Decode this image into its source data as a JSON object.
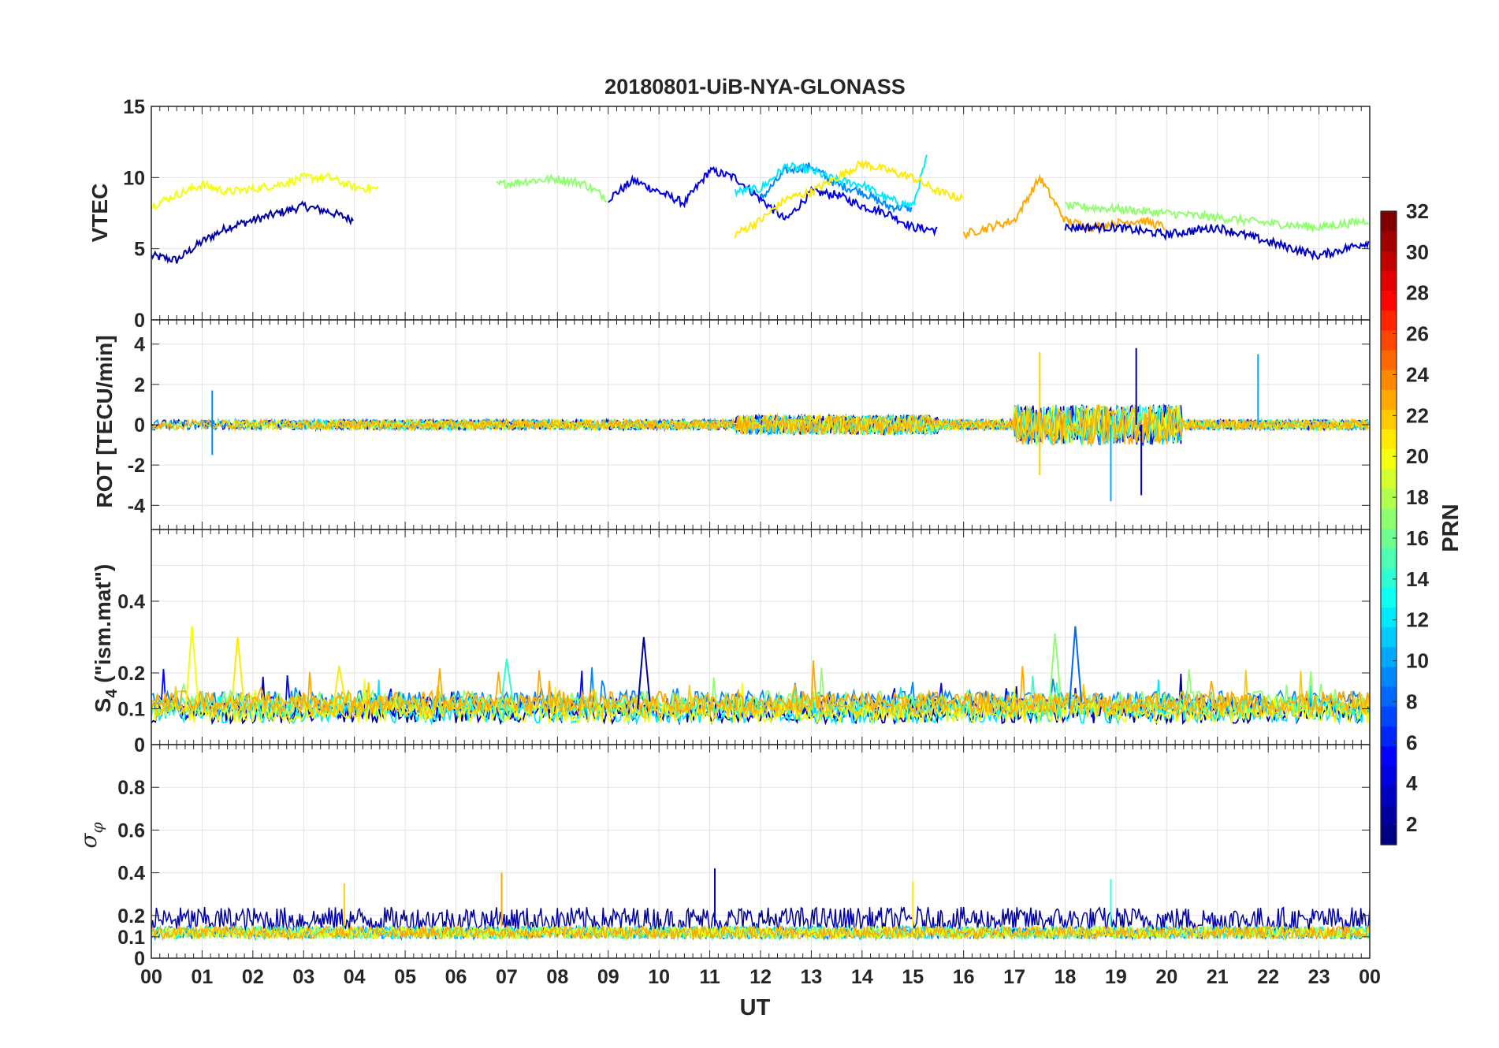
{
  "chart_data": [
    {
      "type": "line",
      "title": "20180801-UiB-NYA-GLONASS",
      "ylabel": "VTEC",
      "ylim": [
        0,
        15
      ],
      "yticks": [
        "0",
        "5",
        "10",
        "15"
      ],
      "grid": true,
      "x_range": [
        0,
        24
      ],
      "note_series": "Many satellite PRN traces colored by PRN (1-24 visible)",
      "series_approx": [
        {
          "prn": 2,
          "x": [
            0,
            0.5,
            1,
            1.5,
            2,
            2.5,
            3,
            3.5,
            4
          ],
          "y": [
            4.5,
            4.2,
            5.5,
            6.5,
            7.0,
            7.5,
            8.0,
            7.6,
            7.0
          ]
        },
        {
          "prn": 4,
          "x": [
            9,
            9.5,
            10,
            10.5,
            11,
            11.5,
            12,
            12.5,
            13,
            13.5,
            14,
            14.5,
            15,
            15.5
          ],
          "y": [
            8.5,
            9.8,
            9.0,
            8.2,
            10.5,
            10.0,
            8.5,
            7.0,
            9.0,
            8.8,
            8.0,
            7.5,
            6.5,
            6.3
          ]
        },
        {
          "prn": 9,
          "x": [
            12,
            12.5,
            13,
            13.5,
            14,
            14.5,
            15
          ],
          "y": [
            8.5,
            10.5,
            10.8,
            9.5,
            9.0,
            8.0,
            7.8
          ]
        },
        {
          "prn": 12,
          "x": [
            11.5,
            12,
            12.5,
            13,
            13.5,
            14,
            14.5,
            15,
            15.3
          ],
          "y": [
            9.0,
            9.2,
            10.8,
            10.5,
            9.8,
            9.5,
            8.5,
            8.0,
            11.7
          ]
        },
        {
          "prn": 17,
          "x": [
            6.8,
            7.5,
            8,
            8.5,
            9
          ],
          "y": [
            9.5,
            9.8,
            9.9,
            9.6,
            8.5
          ]
        },
        {
          "prn": 20,
          "x": [
            0,
            0.5,
            1,
            1.5,
            2,
            2.5,
            3,
            3.5,
            4,
            4.5
          ],
          "y": [
            8.0,
            8.8,
            9.5,
            9.0,
            9.2,
            9.5,
            10.0,
            10.0,
            9.3,
            9.2
          ]
        },
        {
          "prn": 21,
          "x": [
            11.5,
            12,
            12.5,
            13,
            13.5,
            14,
            14.5,
            15,
            15.5,
            16
          ],
          "y": [
            6.0,
            7.0,
            8.5,
            9.0,
            10.0,
            11.0,
            10.5,
            10.0,
            9.0,
            8.5
          ]
        },
        {
          "prn": 23,
          "x": [
            16,
            16.5,
            17,
            17.5,
            18,
            18.5,
            19,
            19.5,
            20
          ],
          "y": [
            6.0,
            6.5,
            7.0,
            10.0,
            7.0,
            6.5,
            6.8,
            7.0,
            6.5
          ]
        },
        {
          "prn": 17,
          "x": [
            18,
            19,
            20,
            21,
            22,
            23,
            24
          ],
          "y": [
            8.0,
            7.8,
            7.5,
            7.2,
            6.8,
            6.5,
            7.0
          ]
        },
        {
          "prn": 3,
          "x": [
            18,
            19,
            20,
            21,
            22,
            23,
            24
          ],
          "y": [
            6.5,
            6.5,
            6.0,
            6.5,
            5.5,
            4.5,
            5.5
          ]
        }
      ]
    },
    {
      "type": "line",
      "ylabel": "ROT [TECU/min]",
      "ylim": [
        -5,
        5
      ],
      "yticks": [
        "-4",
        "-2",
        "0",
        "2",
        "4"
      ],
      "grid": true,
      "x_range": [
        0,
        24
      ],
      "peaks": [
        {
          "x": 1.2,
          "y": 1.7
        },
        {
          "x": 1.2,
          "y": -1.5
        },
        {
          "x": 17.5,
          "y": 3.6
        },
        {
          "x": 17.5,
          "y": -2.5
        },
        {
          "x": 19.4,
          "y": 3.8
        },
        {
          "x": 18.9,
          "y": -3.8
        },
        {
          "x": 19.5,
          "y": -3.5
        },
        {
          "x": 21.8,
          "y": 3.5
        }
      ]
    },
    {
      "type": "line",
      "ylabel": "S_4 (\"ism.mat\")",
      "ylabel_main": "S",
      "ylabel_sub": "4",
      "ylabel_rest": " (\"ism.mat\")",
      "ylim": [
        0,
        0.6
      ],
      "yticks": [
        "0",
        "0.1",
        "0.2",
        "0.4"
      ],
      "grid": true,
      "x_range": [
        0,
        24
      ],
      "peaks": [
        {
          "x": 0.8,
          "y": 0.33
        },
        {
          "x": 1.7,
          "y": 0.3
        },
        {
          "x": 3.7,
          "y": 0.22
        },
        {
          "x": 7.0,
          "y": 0.24
        },
        {
          "x": 9.7,
          "y": 0.3
        },
        {
          "x": 17.8,
          "y": 0.31
        },
        {
          "x": 18.2,
          "y": 0.33
        }
      ]
    },
    {
      "type": "line",
      "ylabel": "σ_φ",
      "ylabel_main": "σ",
      "ylabel_sub": "φ",
      "ylim": [
        0,
        1
      ],
      "yticks": [
        "0",
        "0.1",
        "0.2",
        "0.4",
        "0.6",
        "0.8"
      ],
      "grid": true,
      "x_range": [
        0,
        24
      ],
      "peaks": [
        {
          "x": 3.8,
          "y": 0.35
        },
        {
          "x": 6.9,
          "y": 0.4
        },
        {
          "x": 11.1,
          "y": 0.42
        },
        {
          "x": 15.0,
          "y": 0.36
        },
        {
          "x": 18.9,
          "y": 0.37
        }
      ]
    }
  ],
  "xaxis": {
    "label": "UT",
    "ticks": [
      "00",
      "01",
      "02",
      "03",
      "04",
      "05",
      "06",
      "07",
      "08",
      "09",
      "10",
      "11",
      "12",
      "13",
      "14",
      "15",
      "16",
      "17",
      "18",
      "19",
      "20",
      "21",
      "22",
      "23",
      "00"
    ]
  },
  "colorbar": {
    "label": "PRN",
    "range": [
      1,
      32
    ],
    "ticks": [
      "2",
      "4",
      "6",
      "8",
      "10",
      "12",
      "14",
      "16",
      "18",
      "20",
      "22",
      "24",
      "26",
      "28",
      "30",
      "32"
    ],
    "colormap": "jet"
  }
}
